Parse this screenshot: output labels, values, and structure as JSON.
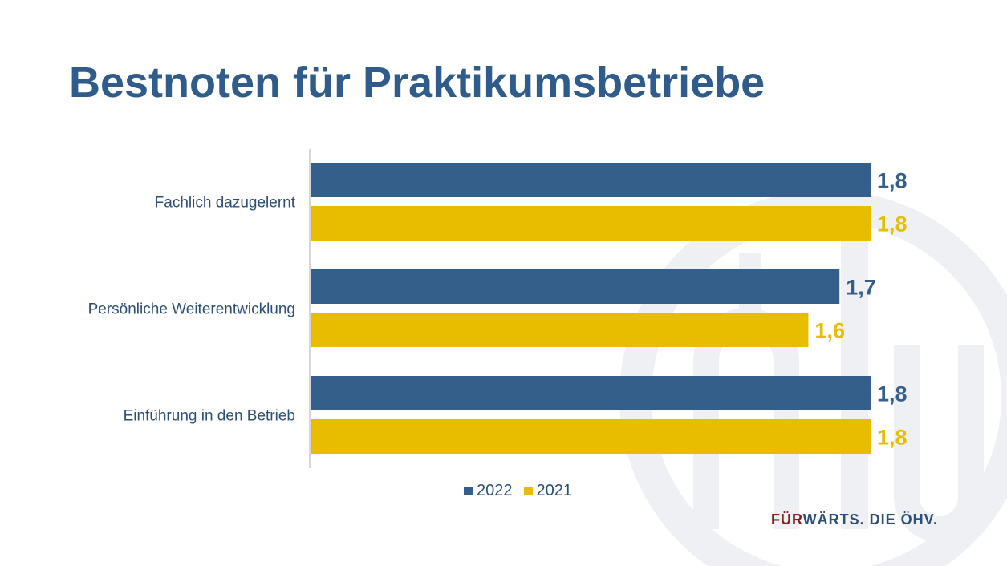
{
  "title": "Bestnoten für Praktikumsbetriebe",
  "colors": {
    "title": "#2f5c8a",
    "text": "#2b4f78",
    "axis": "#c8c8c8",
    "watermark": "#eef0f4",
    "brand_red": "#8a1c1c",
    "brand_blue": "#2b4f78"
  },
  "chart_data": {
    "type": "bar",
    "orientation": "horizontal",
    "categories": [
      "Fachlich dazugelernt",
      "Persönliche Weiterentwicklung",
      "Einführung in den Betrieb"
    ],
    "series": [
      {
        "name": "2022",
        "color": "#355f8b",
        "values": [
          1.8,
          1.7,
          1.8
        ],
        "labels": [
          "1,8",
          "1,7",
          "1,8"
        ]
      },
      {
        "name": "2021",
        "color": "#e8bd00",
        "values": [
          1.8,
          1.6,
          1.8
        ],
        "labels": [
          "1,8",
          "1,6",
          "1,8"
        ]
      }
    ],
    "axis_value_max": 1.8,
    "legend_position": "bottom",
    "grid": false
  },
  "footer": {
    "tagline_part1": "FÜR",
    "tagline_part2": "WÄRTS. DIE ÖHV."
  }
}
